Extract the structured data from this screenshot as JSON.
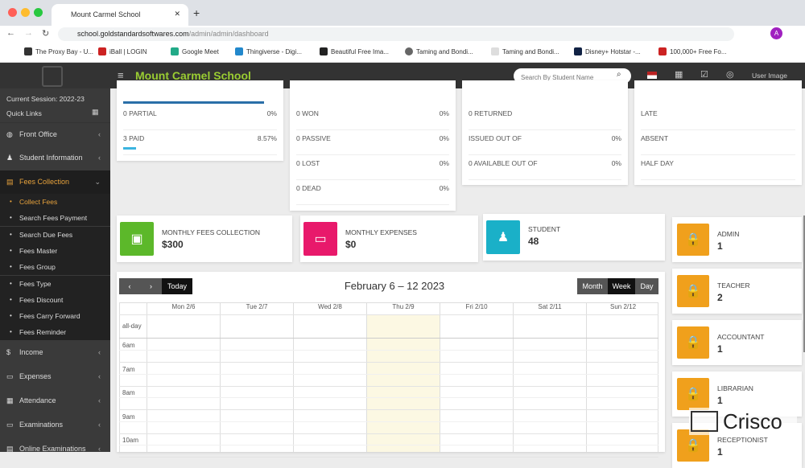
{
  "browser": {
    "tab_title": "Mount Carmel School",
    "url_host": "school.goldstandardsoftwares.com",
    "url_path": "/admin/admin/dashboard",
    "profile_initial": "A",
    "bookmarks": [
      "The Proxy Bay - U...",
      "iBall | LOGIN",
      "Google Meet",
      "Thingiverse - Digi...",
      "Beautiful Free Ima...",
      "Taming and Bondi...",
      "Taming and Bondi...",
      "Disney+ Hotstar -...",
      "100,000+ Free Fo..."
    ]
  },
  "header": {
    "title": "Mount Carmel School",
    "search_placeholder": "Search By Student Name",
    "user_label": "User Image"
  },
  "sidebar": {
    "session": "Current Session: 2022-23",
    "quick_links": "Quick Links",
    "items_top": [
      {
        "label": "Front Office",
        "icon": "globe-icon"
      },
      {
        "label": "Student Information",
        "icon": "user-icon"
      }
    ],
    "active": {
      "label": "Fees Collection",
      "color": "#e8a33c"
    },
    "subitems": [
      "Collect Fees",
      "Search Fees Payment",
      "Search Due Fees",
      "Fees Master",
      "Fees Group",
      "Fees Type",
      "Fees Discount",
      "Fees Carry Forward",
      "Fees Reminder"
    ],
    "items_bottom": [
      {
        "label": "Income",
        "icon": "dollar-icon"
      },
      {
        "label": "Expenses",
        "icon": "credit-card-icon"
      },
      {
        "label": "Attendance",
        "icon": "calendar-icon"
      },
      {
        "label": "Examinations",
        "icon": "monitor-icon"
      },
      {
        "label": "Online Examinations",
        "icon": "file-icon"
      }
    ]
  },
  "fees_card": {
    "rows": [
      {
        "label": "0 PARTIAL",
        "value": "0%"
      },
      {
        "label": "3 PAID",
        "value": "8.57%",
        "progress": 8.57
      }
    ],
    "top_progress": 91.43
  },
  "enquiry_card": {
    "rows": [
      {
        "label": "0 WON",
        "value": "0%"
      },
      {
        "label": "0 PASSIVE",
        "value": "0%"
      },
      {
        "label": "0 LOST",
        "value": "0%"
      },
      {
        "label": "0 DEAD",
        "value": "0%"
      }
    ]
  },
  "library_card": {
    "rows": [
      {
        "label": "0 RETURNED",
        "value": ""
      },
      {
        "label": "ISSUED OUT OF",
        "value": "0%"
      },
      {
        "label": "0 AVAILABLE OUT OF",
        "value": "0%"
      }
    ]
  },
  "attendance_card": {
    "rows": [
      {
        "label": "LATE"
      },
      {
        "label": "ABSENT"
      },
      {
        "label": "HALF DAY"
      }
    ]
  },
  "stats": [
    {
      "label": "MONTHLY FEES COLLECTION",
      "value": "$300",
      "color": "#5cb82a",
      "icon": "money-icon"
    },
    {
      "label": "MONTHLY EXPENSES",
      "value": "$0",
      "color": "#e8196b",
      "icon": "credit-card-icon"
    },
    {
      "label": "STUDENT",
      "value": "48",
      "color": "#1ab0c8",
      "icon": "user-icon"
    }
  ],
  "roles": [
    {
      "label": "ADMIN",
      "value": "1"
    },
    {
      "label": "TEACHER",
      "value": "2"
    },
    {
      "label": "ACCOUNTANT",
      "value": "1"
    },
    {
      "label": "LIBRARIAN",
      "value": "1"
    },
    {
      "label": "RECEPTIONIST",
      "value": "1"
    }
  ],
  "calendar": {
    "title": "February 6 – 12 2023",
    "today": "Today",
    "views": [
      "Month",
      "Week",
      "Day"
    ],
    "active_view": "Week",
    "days": [
      "Mon 2/6",
      "Tue 2/7",
      "Wed 2/8",
      "Thu 2/9",
      "Fri 2/10",
      "Sat 2/11",
      "Sun 2/12"
    ],
    "allday": "all-day",
    "times": [
      "6am",
      "7am",
      "8am",
      "9am",
      "10am"
    ]
  },
  "watermark": "Crisco"
}
